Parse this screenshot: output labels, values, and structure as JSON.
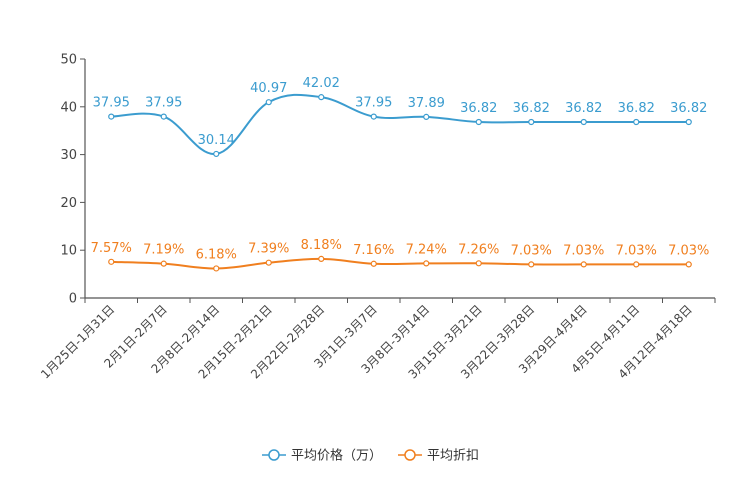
{
  "chart_data": {
    "type": "line",
    "categories": [
      "1月25日-1月31日",
      "2月1日-2月7日",
      "2月8日-2月14日",
      "2月15日-2月21日",
      "2月22日-2月28日",
      "3月1日-3月7日",
      "3月8日-3月14日",
      "3月15日-3月21日",
      "3月22日-3月28日",
      "3月29日-4月4日",
      "4月5日-4月11日",
      "4月12日-4月18日"
    ],
    "series": [
      {
        "name": "平均价格（万）",
        "values": [
          37.95,
          37.95,
          30.14,
          40.97,
          42.02,
          37.95,
          37.89,
          36.82,
          36.82,
          36.82,
          36.82,
          36.82
        ],
        "labels": [
          "37.95",
          "37.95",
          "30.14",
          "40.97",
          "42.02",
          "37.95",
          "37.89",
          "36.82",
          "36.82",
          "36.82",
          "36.82",
          "36.82"
        ],
        "color": "#3b9ccf"
      },
      {
        "name": "平均折扣",
        "values": [
          7.57,
          7.19,
          6.18,
          7.39,
          8.18,
          7.16,
          7.24,
          7.26,
          7.03,
          7.03,
          7.03,
          7.03
        ],
        "labels": [
          "7.57%",
          "7.19%",
          "6.18%",
          "7.39%",
          "8.18%",
          "7.16%",
          "7.24%",
          "7.26%",
          "7.03%",
          "7.03%",
          "7.03%",
          "7.03%"
        ],
        "color": "#f07f1f"
      }
    ],
    "ylim": [
      0,
      50
    ],
    "yticks": [
      "0",
      "10",
      "20",
      "30",
      "40",
      "50"
    ],
    "title": "",
    "xlabel": "",
    "ylabel": "",
    "grid": false,
    "legend_position": "bottom-center"
  }
}
